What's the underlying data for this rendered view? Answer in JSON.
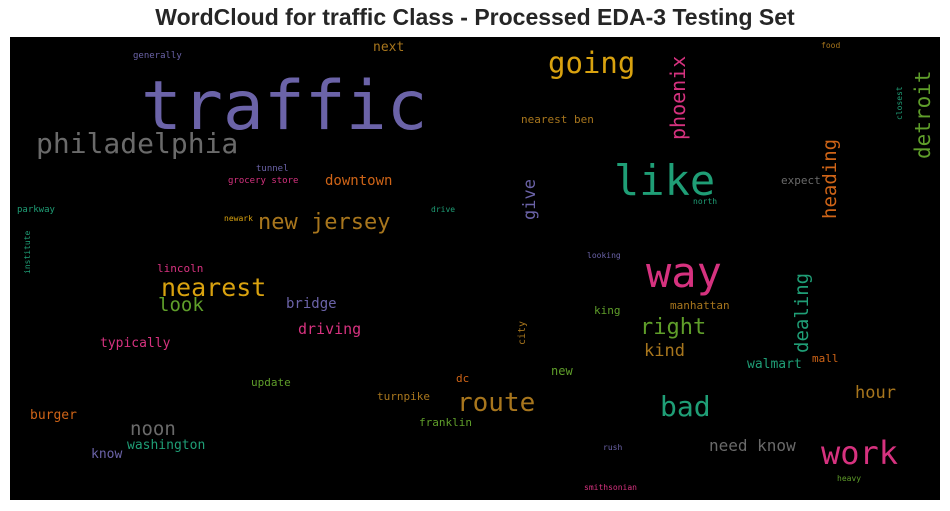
{
  "title": "WordCloud for traffic Class - Processed EDA-3 Testing Set",
  "colors": {
    "purple": "#6b63a8",
    "green": "#1f9e76",
    "orange": "#cf6417",
    "pink": "#d6327f",
    "olive": "#5f9e2a",
    "gold": "#d9a20f",
    "brown": "#a8761d",
    "gray": "#6a6a6a",
    "background": "#000000"
  },
  "words": [
    {
      "text": "traffic",
      "color": "purple",
      "size": 68
    },
    {
      "text": "philadelphia",
      "color": "gray",
      "size": 28
    },
    {
      "text": "going",
      "color": "gold",
      "size": 29
    },
    {
      "text": "like",
      "color": "green",
      "size": 42
    },
    {
      "text": "phoenix",
      "color": "pink",
      "size": 20
    },
    {
      "text": "detroit",
      "color": "olive",
      "size": 21
    },
    {
      "text": "heading",
      "color": "orange",
      "size": 19
    },
    {
      "text": "way",
      "color": "pink",
      "size": 42
    },
    {
      "text": "new jersey",
      "color": "brown",
      "size": 22
    },
    {
      "text": "nearest",
      "color": "gold",
      "size": 25
    },
    {
      "text": "look",
      "color": "olive",
      "size": 19
    },
    {
      "text": "give",
      "color": "purple",
      "size": 17
    },
    {
      "text": "right",
      "color": "olive",
      "size": 22
    },
    {
      "text": "dealing",
      "color": "green",
      "size": 19
    },
    {
      "text": "kind",
      "color": "brown",
      "size": 17
    },
    {
      "text": "route",
      "color": "brown",
      "size": 26
    },
    {
      "text": "bad",
      "color": "green",
      "size": 28
    },
    {
      "text": "work",
      "color": "pink",
      "size": 32
    },
    {
      "text": "noon",
      "color": "gray",
      "size": 19
    },
    {
      "text": "need know",
      "color": "gray",
      "size": 16
    },
    {
      "text": "hour",
      "color": "brown",
      "size": 17
    },
    {
      "text": "downtown",
      "color": "orange",
      "size": 14
    },
    {
      "text": "driving",
      "color": "pink",
      "size": 15
    },
    {
      "text": "bridge",
      "color": "purple",
      "size": 14
    },
    {
      "text": "typically",
      "color": "pink",
      "size": 13
    },
    {
      "text": "washington",
      "color": "green",
      "size": 13
    },
    {
      "text": "burger",
      "color": "orange",
      "size": 13
    },
    {
      "text": "know",
      "color": "purple",
      "size": 13
    },
    {
      "text": "walmart",
      "color": "green",
      "size": 13
    },
    {
      "text": "next",
      "color": "brown",
      "size": 13
    },
    {
      "text": "nearest ben",
      "color": "brown",
      "size": 11
    },
    {
      "text": "lincoln",
      "color": "pink",
      "size": 11
    },
    {
      "text": "update",
      "color": "olive",
      "size": 11
    },
    {
      "text": "turnpike",
      "color": "brown",
      "size": 11
    },
    {
      "text": "franklin",
      "color": "olive",
      "size": 11
    },
    {
      "text": "manhattan",
      "color": "brown",
      "size": 11
    },
    {
      "text": "king",
      "color": "olive",
      "size": 11
    },
    {
      "text": "new",
      "color": "olive",
      "size": 12
    },
    {
      "text": "dc",
      "color": "orange",
      "size": 11
    },
    {
      "text": "expect",
      "color": "gray",
      "size": 11
    },
    {
      "text": "mall",
      "color": "orange",
      "size": 11
    },
    {
      "text": "city",
      "color": "brown",
      "size": 10
    },
    {
      "text": "tunnel",
      "color": "purple",
      "size": 9
    },
    {
      "text": "grocery store",
      "color": "pink",
      "size": 9
    },
    {
      "text": "generally",
      "color": "purple",
      "size": 9
    },
    {
      "text": "parkway",
      "color": "green",
      "size": 9
    },
    {
      "text": "institute",
      "color": "green",
      "size": 8
    },
    {
      "text": "newark",
      "color": "gold",
      "size": 8
    },
    {
      "text": "drive",
      "color": "green",
      "size": 8
    },
    {
      "text": "north",
      "color": "green",
      "size": 8
    },
    {
      "text": "looking",
      "color": "purple",
      "size": 8
    },
    {
      "text": "food",
      "color": "brown",
      "size": 8
    },
    {
      "text": "closest",
      "color": "green",
      "size": 8
    },
    {
      "text": "rush",
      "color": "purple",
      "size": 8
    },
    {
      "text": "smithsonian",
      "color": "pink",
      "size": 8
    },
    {
      "text": "heavy",
      "color": "olive",
      "size": 8
    }
  ]
}
